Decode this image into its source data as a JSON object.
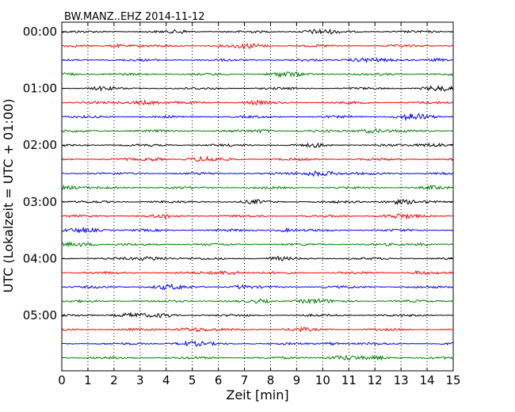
{
  "chart_data": {
    "type": "line",
    "title": "BW.MANZ..EHZ 2014-11-12",
    "xlabel": "Zeit  [min]",
    "ylabel": "UTC (Lokalzeit = UTC + 01:00)",
    "xlim": [
      0,
      15
    ],
    "x_ticks": [
      "0",
      "1",
      "2",
      "3",
      "4",
      "5",
      "6",
      "7",
      "8",
      "9",
      "10",
      "11",
      "12",
      "13",
      "14",
      "15"
    ],
    "y_ticks": [
      "00:00",
      "01:00",
      "02:00",
      "03:00",
      "04:00",
      "05:00"
    ],
    "row_interval_min": 15,
    "row_count": 24,
    "row_colors": [
      "#000000",
      "#ff0000",
      "#0000ff",
      "#008000"
    ],
    "vertical_grid": "dotted",
    "series_note": "seismogram traces, one per 15-minute window"
  }
}
